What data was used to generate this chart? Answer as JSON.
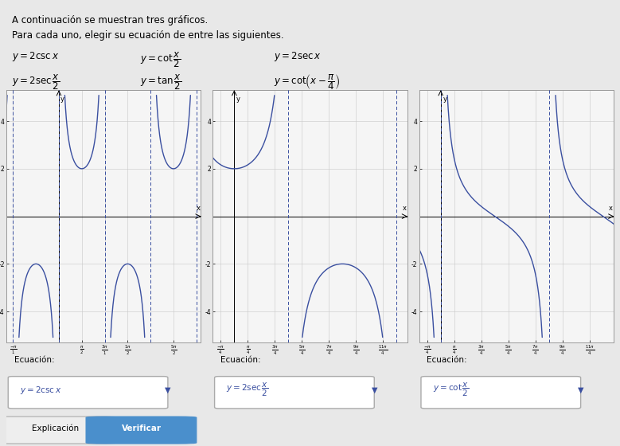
{
  "title_line1": "A continuación se muestran tres gráficos.",
  "title_line2": "Para cada uno, elegir su ecuación de entre las siguientes.",
  "curve_color": "#3a4fa0",
  "asymptote_color": "#3a4fa0",
  "grid_color": "#c8c8c8",
  "background_color": "#e8e8e8",
  "plot_bg": "#f5f5f5",
  "verificar_color": "#4a8fcc",
  "footer_bg": "#d8d8d8",
  "graph1_answer": "y=2\\csc x",
  "graph2_answer": "y=2\\sec\\frac{x}{2}",
  "graph3_answer": "y=\\cot\\frac{x}{2}",
  "graph1_xlim": [
    -3.7,
    10.2
  ],
  "graph1_ylim": [
    -5.5,
    5.5
  ],
  "graph2_xlim": [
    -1.2,
    10.2
  ],
  "graph2_ylim": [
    -5.5,
    5.5
  ],
  "graph3_xlim": [
    -1.2,
    10.2
  ],
  "graph3_ylim": [
    -5.5,
    5.5
  ]
}
